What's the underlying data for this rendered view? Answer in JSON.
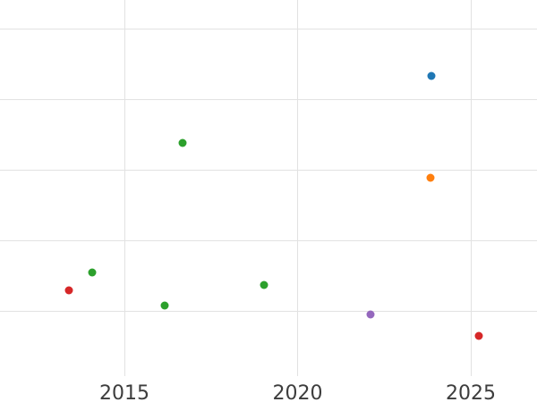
{
  "chart_data": {
    "type": "scatter",
    "title": "",
    "xlabel": "",
    "ylabel": "",
    "grid": true,
    "legend": false,
    "x_tick_labels": [
      "2015",
      "2020",
      "2025"
    ],
    "x_ticks": [
      2015,
      2020,
      2025
    ],
    "x_range_visible": [
      2011.4,
      2026.9
    ],
    "y_axis_labels_visible": false,
    "y_gridline_units": [
      0,
      1,
      2,
      3,
      4
    ],
    "colors": {
      "blue": "#1f77b4",
      "orange": "#ff7f0e",
      "green": "#2ca02c",
      "red": "#d62728",
      "purple": "#9467bd",
      "grid": "#e2e2e2",
      "tick_label": "#3d3d3d"
    },
    "points": [
      {
        "x": 2013.4,
        "y": 0.29,
        "series": "red",
        "color": "#d62728"
      },
      {
        "x": 2014.07,
        "y": 0.54,
        "series": "green",
        "color": "#2ca02c"
      },
      {
        "x": 2016.16,
        "y": 0.08,
        "series": "green",
        "color": "#2ca02c"
      },
      {
        "x": 2016.68,
        "y": 2.38,
        "series": "green",
        "color": "#2ca02c"
      },
      {
        "x": 2019.03,
        "y": 0.37,
        "series": "green",
        "color": "#2ca02c"
      },
      {
        "x": 2022.1,
        "y": -0.05,
        "series": "purple",
        "color": "#9467bd"
      },
      {
        "x": 2023.84,
        "y": 1.89,
        "series": "orange",
        "color": "#ff7f0e"
      },
      {
        "x": 2023.86,
        "y": 3.33,
        "series": "blue",
        "color": "#1f77b4"
      },
      {
        "x": 2025.23,
        "y": -0.35,
        "series": "red",
        "color": "#d62728"
      }
    ]
  }
}
